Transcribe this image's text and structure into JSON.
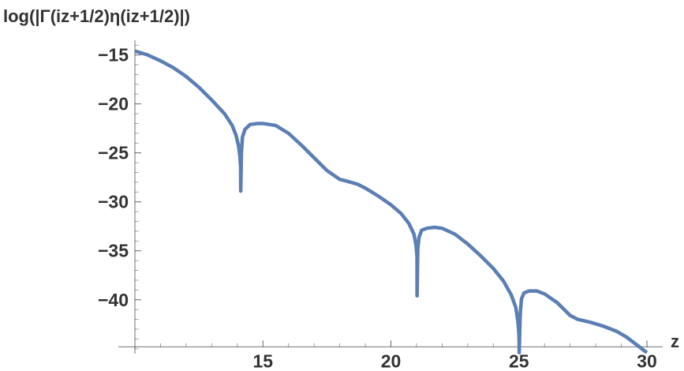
{
  "chart_data": {
    "type": "line",
    "ylabel": "log(|Γ(iz+1/2)η(iz+1/2)|)",
    "xlabel": "z",
    "xlim": [
      10,
      30
    ],
    "ylim": [
      -45.5,
      -13.5
    ],
    "x_ticks": [
      15,
      20,
      25,
      30
    ],
    "x_tick_labels": [
      "15",
      "20",
      "25",
      "30"
    ],
    "y_ticks": [
      -15,
      -20,
      -25,
      -30,
      -35,
      -40
    ],
    "y_tick_labels": [
      "−15",
      "−20",
      "−25",
      "−30",
      "−35",
      "−40"
    ],
    "grid": false,
    "legend": "none",
    "series_color": "#5b7fb5",
    "series": [
      {
        "x": [
          10.0,
          10.5,
          11.0,
          11.5,
          12.0,
          12.5,
          13.0,
          13.5,
          13.8,
          13.95,
          14.05,
          14.1,
          14.13,
          14.134,
          14.134,
          14.16,
          14.2,
          14.3,
          14.5,
          14.8,
          15.0,
          15.5,
          16.0,
          16.5,
          17.0,
          17.5,
          18.0,
          18.3,
          18.7,
          19.0,
          19.5,
          20.0,
          20.4,
          20.7,
          20.9,
          20.98,
          21.02,
          21.022,
          21.022,
          21.05,
          21.1,
          21.2,
          21.4,
          21.7,
          22.0,
          22.5,
          23.0,
          23.5,
          24.0,
          24.4,
          24.7,
          24.88,
          24.96,
          25.0,
          25.01,
          25.011,
          25.011,
          25.05,
          25.1,
          25.2,
          25.4,
          25.7,
          26.0,
          26.5,
          27.0,
          27.3,
          27.8,
          28.3,
          28.8,
          29.2,
          29.6,
          29.9,
          30.0
        ],
        "y": [
          -14.6,
          -15.0,
          -15.6,
          -16.3,
          -17.2,
          -18.3,
          -19.6,
          -21.0,
          -22.2,
          -23.2,
          -24.3,
          -25.3,
          -26.5,
          -28.9,
          -28.9,
          -25.0,
          -23.4,
          -22.6,
          -22.1,
          -22.0,
          -22.0,
          -22.2,
          -23.0,
          -24.2,
          -25.5,
          -26.8,
          -27.7,
          -27.9,
          -28.2,
          -28.6,
          -29.4,
          -30.3,
          -31.2,
          -32.2,
          -33.3,
          -34.4,
          -35.6,
          -39.6,
          -39.6,
          -34.8,
          -33.6,
          -32.9,
          -32.7,
          -32.6,
          -32.7,
          -33.3,
          -34.3,
          -35.5,
          -36.8,
          -38.1,
          -39.5,
          -40.8,
          -42.2,
          -43.5,
          -44.5,
          -45.4,
          -45.4,
          -41.5,
          -39.9,
          -39.3,
          -39.1,
          -39.1,
          -39.4,
          -40.3,
          -41.6,
          -42.0,
          -42.3,
          -42.7,
          -43.2,
          -43.8,
          -44.6,
          -45.2,
          -45.4
        ]
      }
    ]
  }
}
